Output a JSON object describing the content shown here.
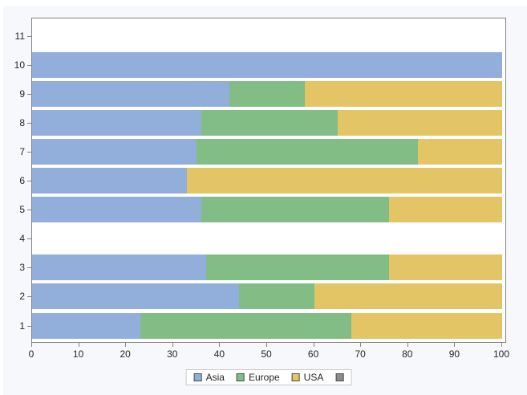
{
  "window": {
    "background": "#f7f8fb"
  },
  "chart_data": {
    "type": "bar",
    "orientation": "horizontal",
    "stacked": true,
    "title": "",
    "xlabel": "",
    "ylabel": "",
    "xlim": [
      0,
      100
    ],
    "x_ticks": [
      "0",
      "10",
      "20",
      "30",
      "40",
      "50",
      "60",
      "70",
      "80",
      "90",
      "100"
    ],
    "grid": false,
    "legend_position": "bottom-center",
    "categories": [
      "1",
      "2",
      "3",
      "4",
      "5",
      "6",
      "7",
      "8",
      "9",
      "10",
      "11"
    ],
    "series": [
      {
        "name": "Asia",
        "color": "#92afdb",
        "values": [
          23,
          44,
          37,
          0,
          36,
          33,
          35,
          36,
          42,
          100,
          0
        ]
      },
      {
        "name": "Europe",
        "color": "#82bd85",
        "values": [
          45,
          16,
          39,
          0,
          40,
          0,
          47,
          29,
          16,
          0,
          0
        ]
      },
      {
        "name": "USA",
        "color": "#e4c565",
        "values": [
          32,
          40,
          24,
          0,
          24,
          67,
          18,
          35,
          42,
          0,
          0
        ]
      },
      {
        "name": "",
        "color": "#8b8b8b",
        "values": [
          0,
          0,
          0,
          0,
          0,
          0,
          0,
          0,
          0,
          0,
          0
        ]
      }
    ]
  },
  "colors": {
    "plot_background": "#ffffff",
    "plot_border": "#848484",
    "tick": "#848484",
    "text": "#262626",
    "legend_border": "#c9c9c9"
  }
}
